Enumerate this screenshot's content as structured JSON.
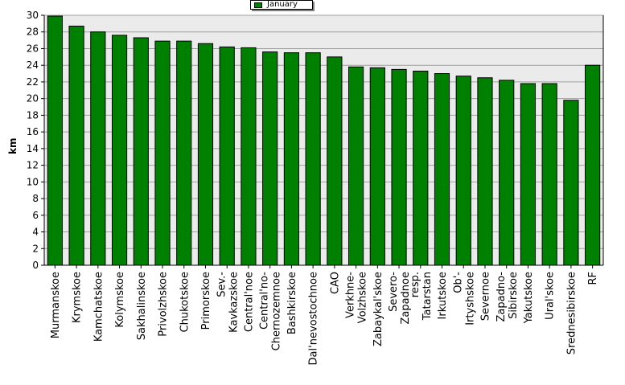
{
  "chart_data": {
    "type": "bar",
    "title": "",
    "xlabel": "",
    "ylabel": "km",
    "ylim": [
      0,
      30
    ],
    "ytick_step": 2,
    "grid": true,
    "legend_position": "top-center",
    "colors": {
      "bar": "#008000",
      "plot_background": "#ebebeb",
      "grid": "#a0a0a0"
    },
    "categories": [
      "Murmanskoe",
      "Krymskoe",
      "Kamchatskoe",
      "Kolymskoe",
      "Sakhalinskoe",
      "Privolzhskoe",
      "Chukotskoe",
      "Primorskoe",
      "Sev.-Kavkazskoe",
      "Central'noe",
      "Central'no-Chernozemnoe",
      "Bashkirskoe",
      "Dal'nevostochnoe",
      "CAO",
      "Verkhne-Volzhskoe",
      "Zabaykal'skoe",
      "Severo-Zapadnoe",
      "resp.Tatarstan",
      "Irkutskoe",
      "Ob'-Irtyshskoe",
      "Severnoe",
      "Zapadno-Sibirskoe",
      "Yakutskoe",
      "Ural'skoe",
      "Srednesibirskoe",
      "RF"
    ],
    "series": [
      {
        "name": "January",
        "values": [
          29.9,
          28.7,
          28.0,
          27.6,
          27.3,
          26.9,
          26.9,
          26.6,
          26.2,
          26.1,
          25.6,
          25.5,
          25.5,
          25.0,
          23.8,
          23.7,
          23.5,
          23.3,
          23.0,
          22.7,
          22.5,
          22.2,
          21.8,
          21.8,
          19.8,
          24.0
        ]
      }
    ]
  }
}
